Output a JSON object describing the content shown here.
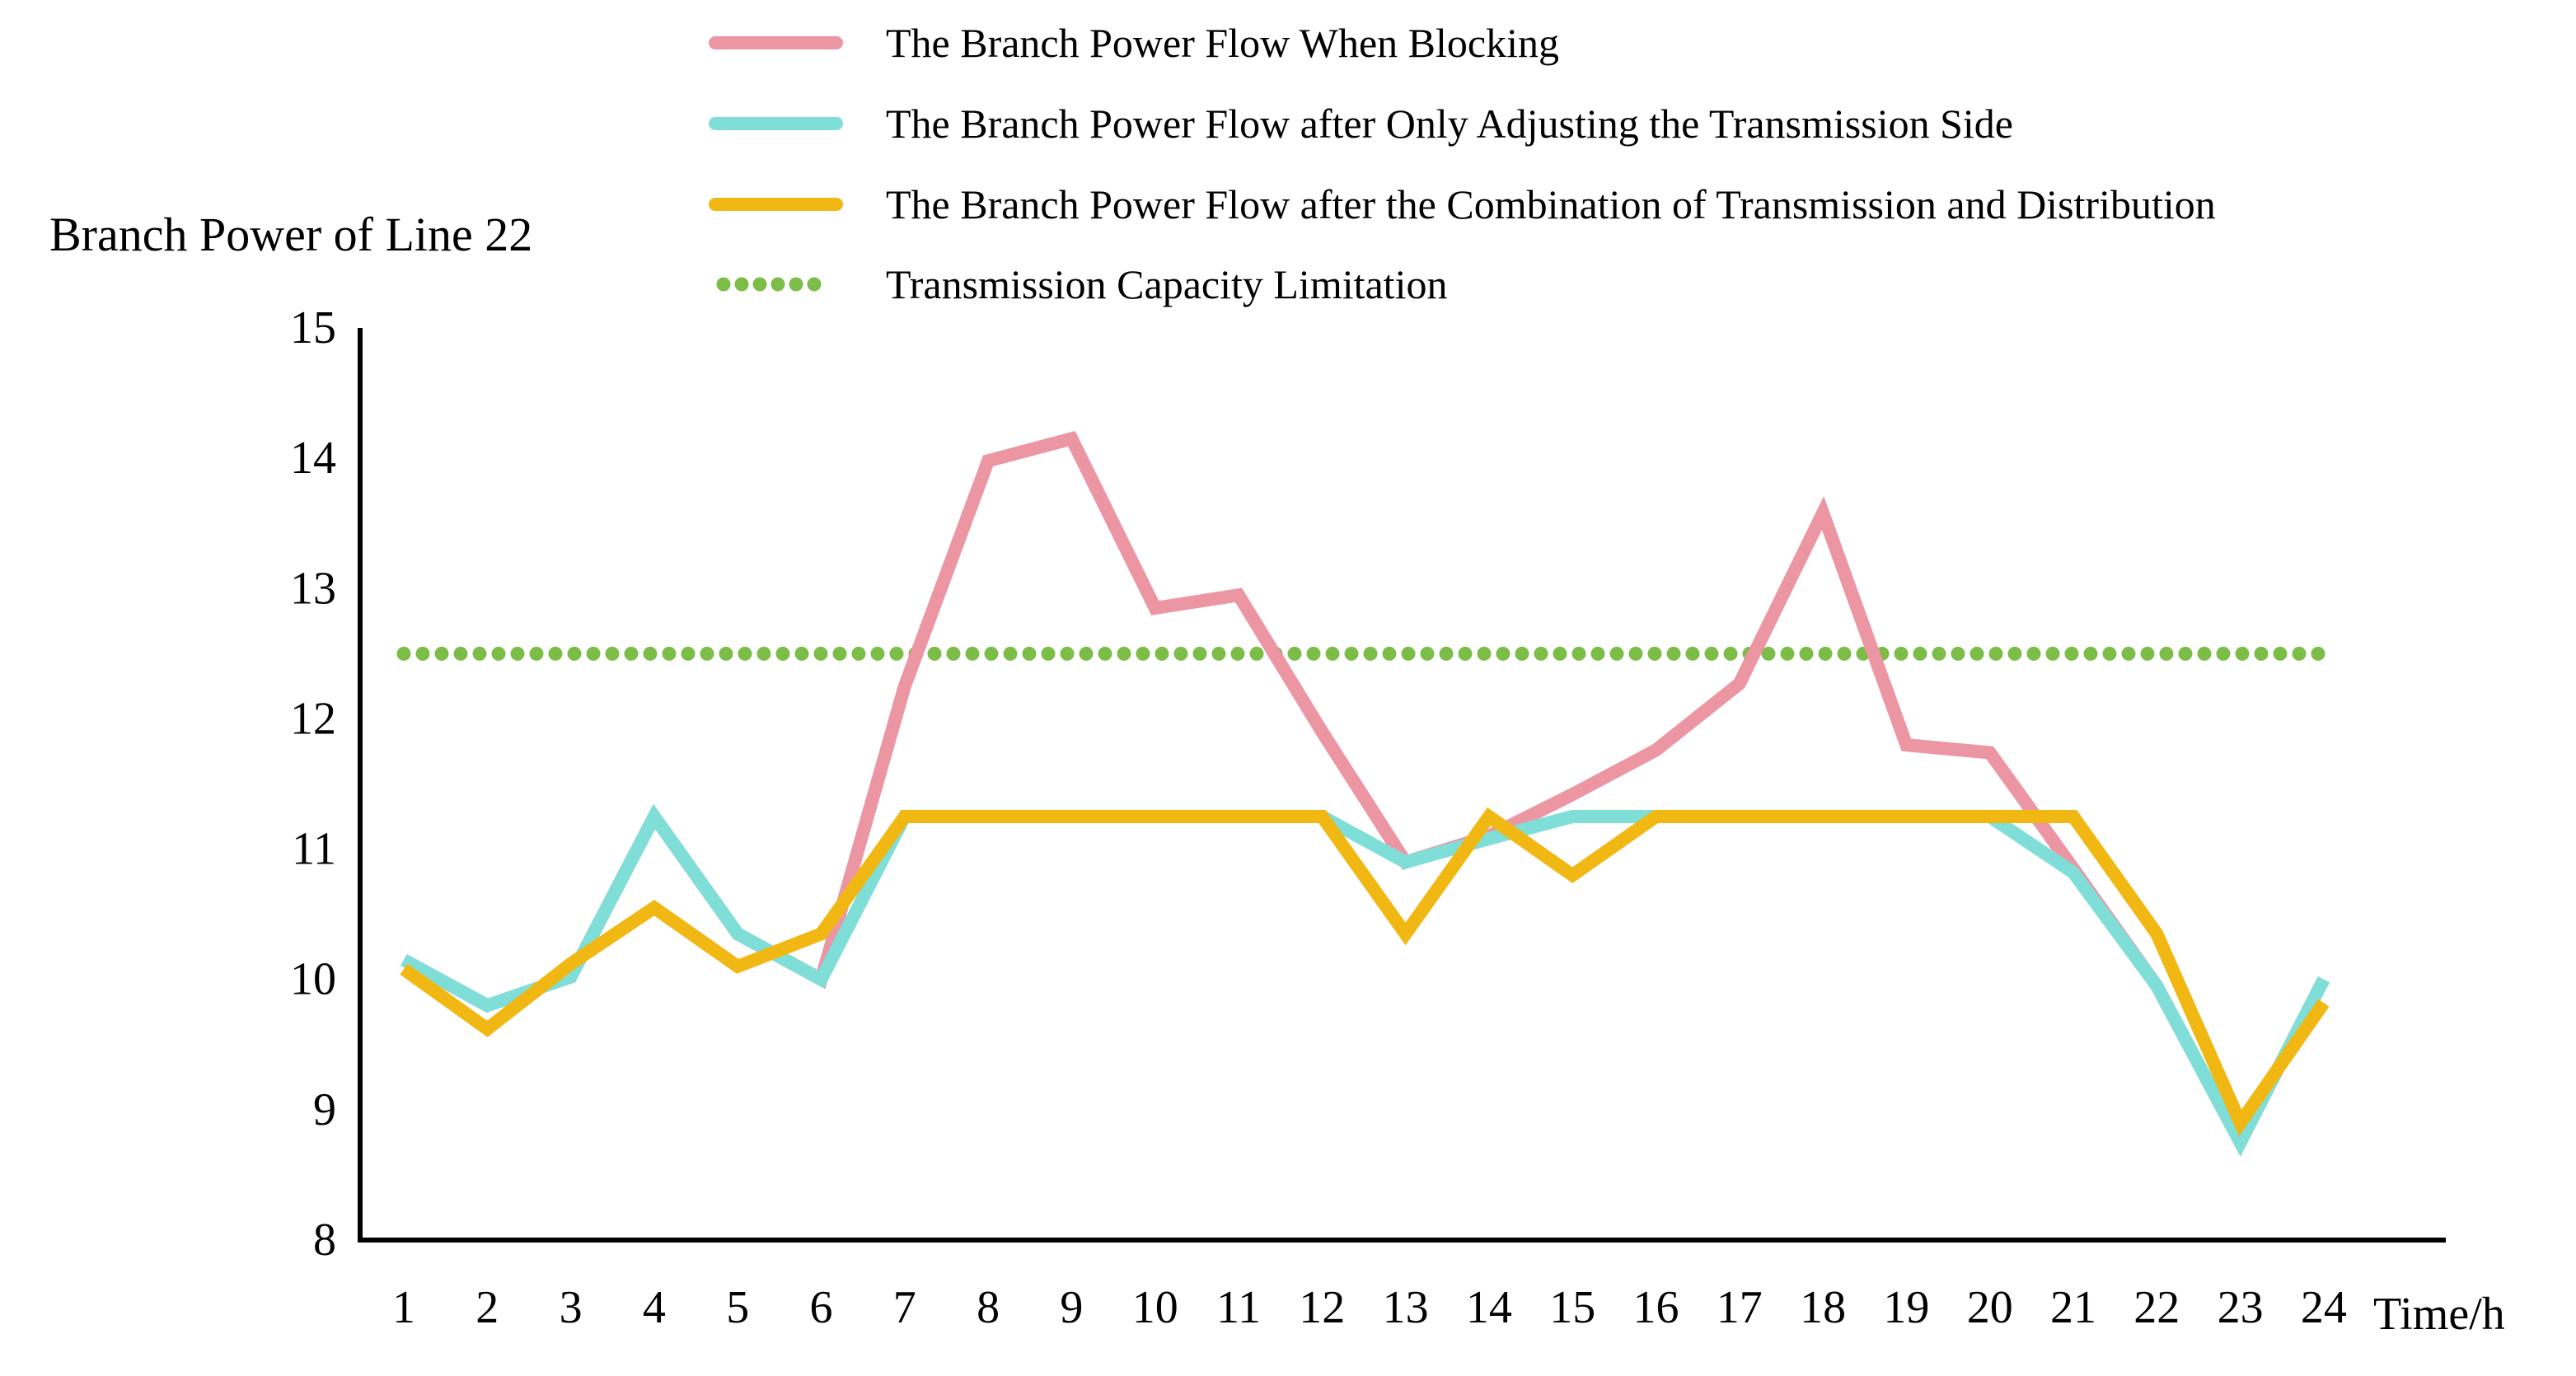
{
  "chart_data": {
    "type": "line",
    "ylabel": "Branch Power of Line 22",
    "xlabel": "Time/h",
    "ylim": [
      8,
      15
    ],
    "yticks": [
      "8",
      "9",
      "10",
      "11",
      "12",
      "13",
      "14",
      "15"
    ],
    "x": [
      1,
      2,
      3,
      4,
      5,
      6,
      7,
      8,
      9,
      10,
      11,
      12,
      13,
      14,
      15,
      16,
      17,
      18,
      19,
      20,
      21,
      22,
      23,
      24
    ],
    "xtick_labels": [
      "1",
      "2",
      "3",
      "4",
      "5",
      "6",
      "7",
      "8",
      "9",
      "10",
      "11",
      "12",
      "13",
      "14",
      "15",
      "16",
      "17",
      "18",
      "19",
      "20",
      "21",
      "22",
      "23",
      "24"
    ],
    "grid": false,
    "legend_placement": "top",
    "series": [
      {
        "name": "The Branch Power Flow When Blocking",
        "color": "#ec95a3",
        "style": "solid",
        "values": [
          10.15,
          9.8,
          10.02,
          11.25,
          10.35,
          10.0,
          12.25,
          13.98,
          14.15,
          12.85,
          12.95,
          11.9,
          10.9,
          11.1,
          11.42,
          11.76,
          12.27,
          13.58,
          11.8,
          11.74,
          10.85,
          9.95,
          8.75,
          10.0
        ]
      },
      {
        "name": "The Branch Power Flow after Only Adjusting the Transmission Side",
        "color": "#7fded8",
        "style": "solid",
        "values": [
          10.15,
          9.8,
          10.02,
          11.25,
          10.35,
          10.0,
          11.25,
          11.25,
          11.25,
          11.25,
          11.25,
          11.25,
          10.9,
          11.08,
          11.25,
          11.25,
          11.25,
          11.25,
          11.25,
          11.25,
          10.82,
          9.95,
          8.75,
          10.0
        ]
      },
      {
        "name": "The Branch Power Flow after the Combination of Transmission and Distribution",
        "color": "#f1b814",
        "style": "solid",
        "values": [
          10.08,
          9.62,
          10.12,
          10.55,
          10.1,
          10.35,
          11.25,
          11.25,
          11.25,
          11.25,
          11.25,
          11.25,
          10.35,
          11.25,
          10.8,
          11.25,
          11.25,
          11.25,
          11.25,
          11.25,
          11.25,
          10.35,
          8.9,
          9.82
        ]
      },
      {
        "name": "Transmission Capacity Limitation",
        "color": "#7cbd48",
        "style": "dotted",
        "values": [
          12.5,
          12.5,
          12.5,
          12.5,
          12.5,
          12.5,
          12.5,
          12.5,
          12.5,
          12.5,
          12.5,
          12.5,
          12.5,
          12.5,
          12.5,
          12.5,
          12.5,
          12.5,
          12.5,
          12.5,
          12.5,
          12.5,
          12.5,
          12.5
        ]
      }
    ]
  }
}
